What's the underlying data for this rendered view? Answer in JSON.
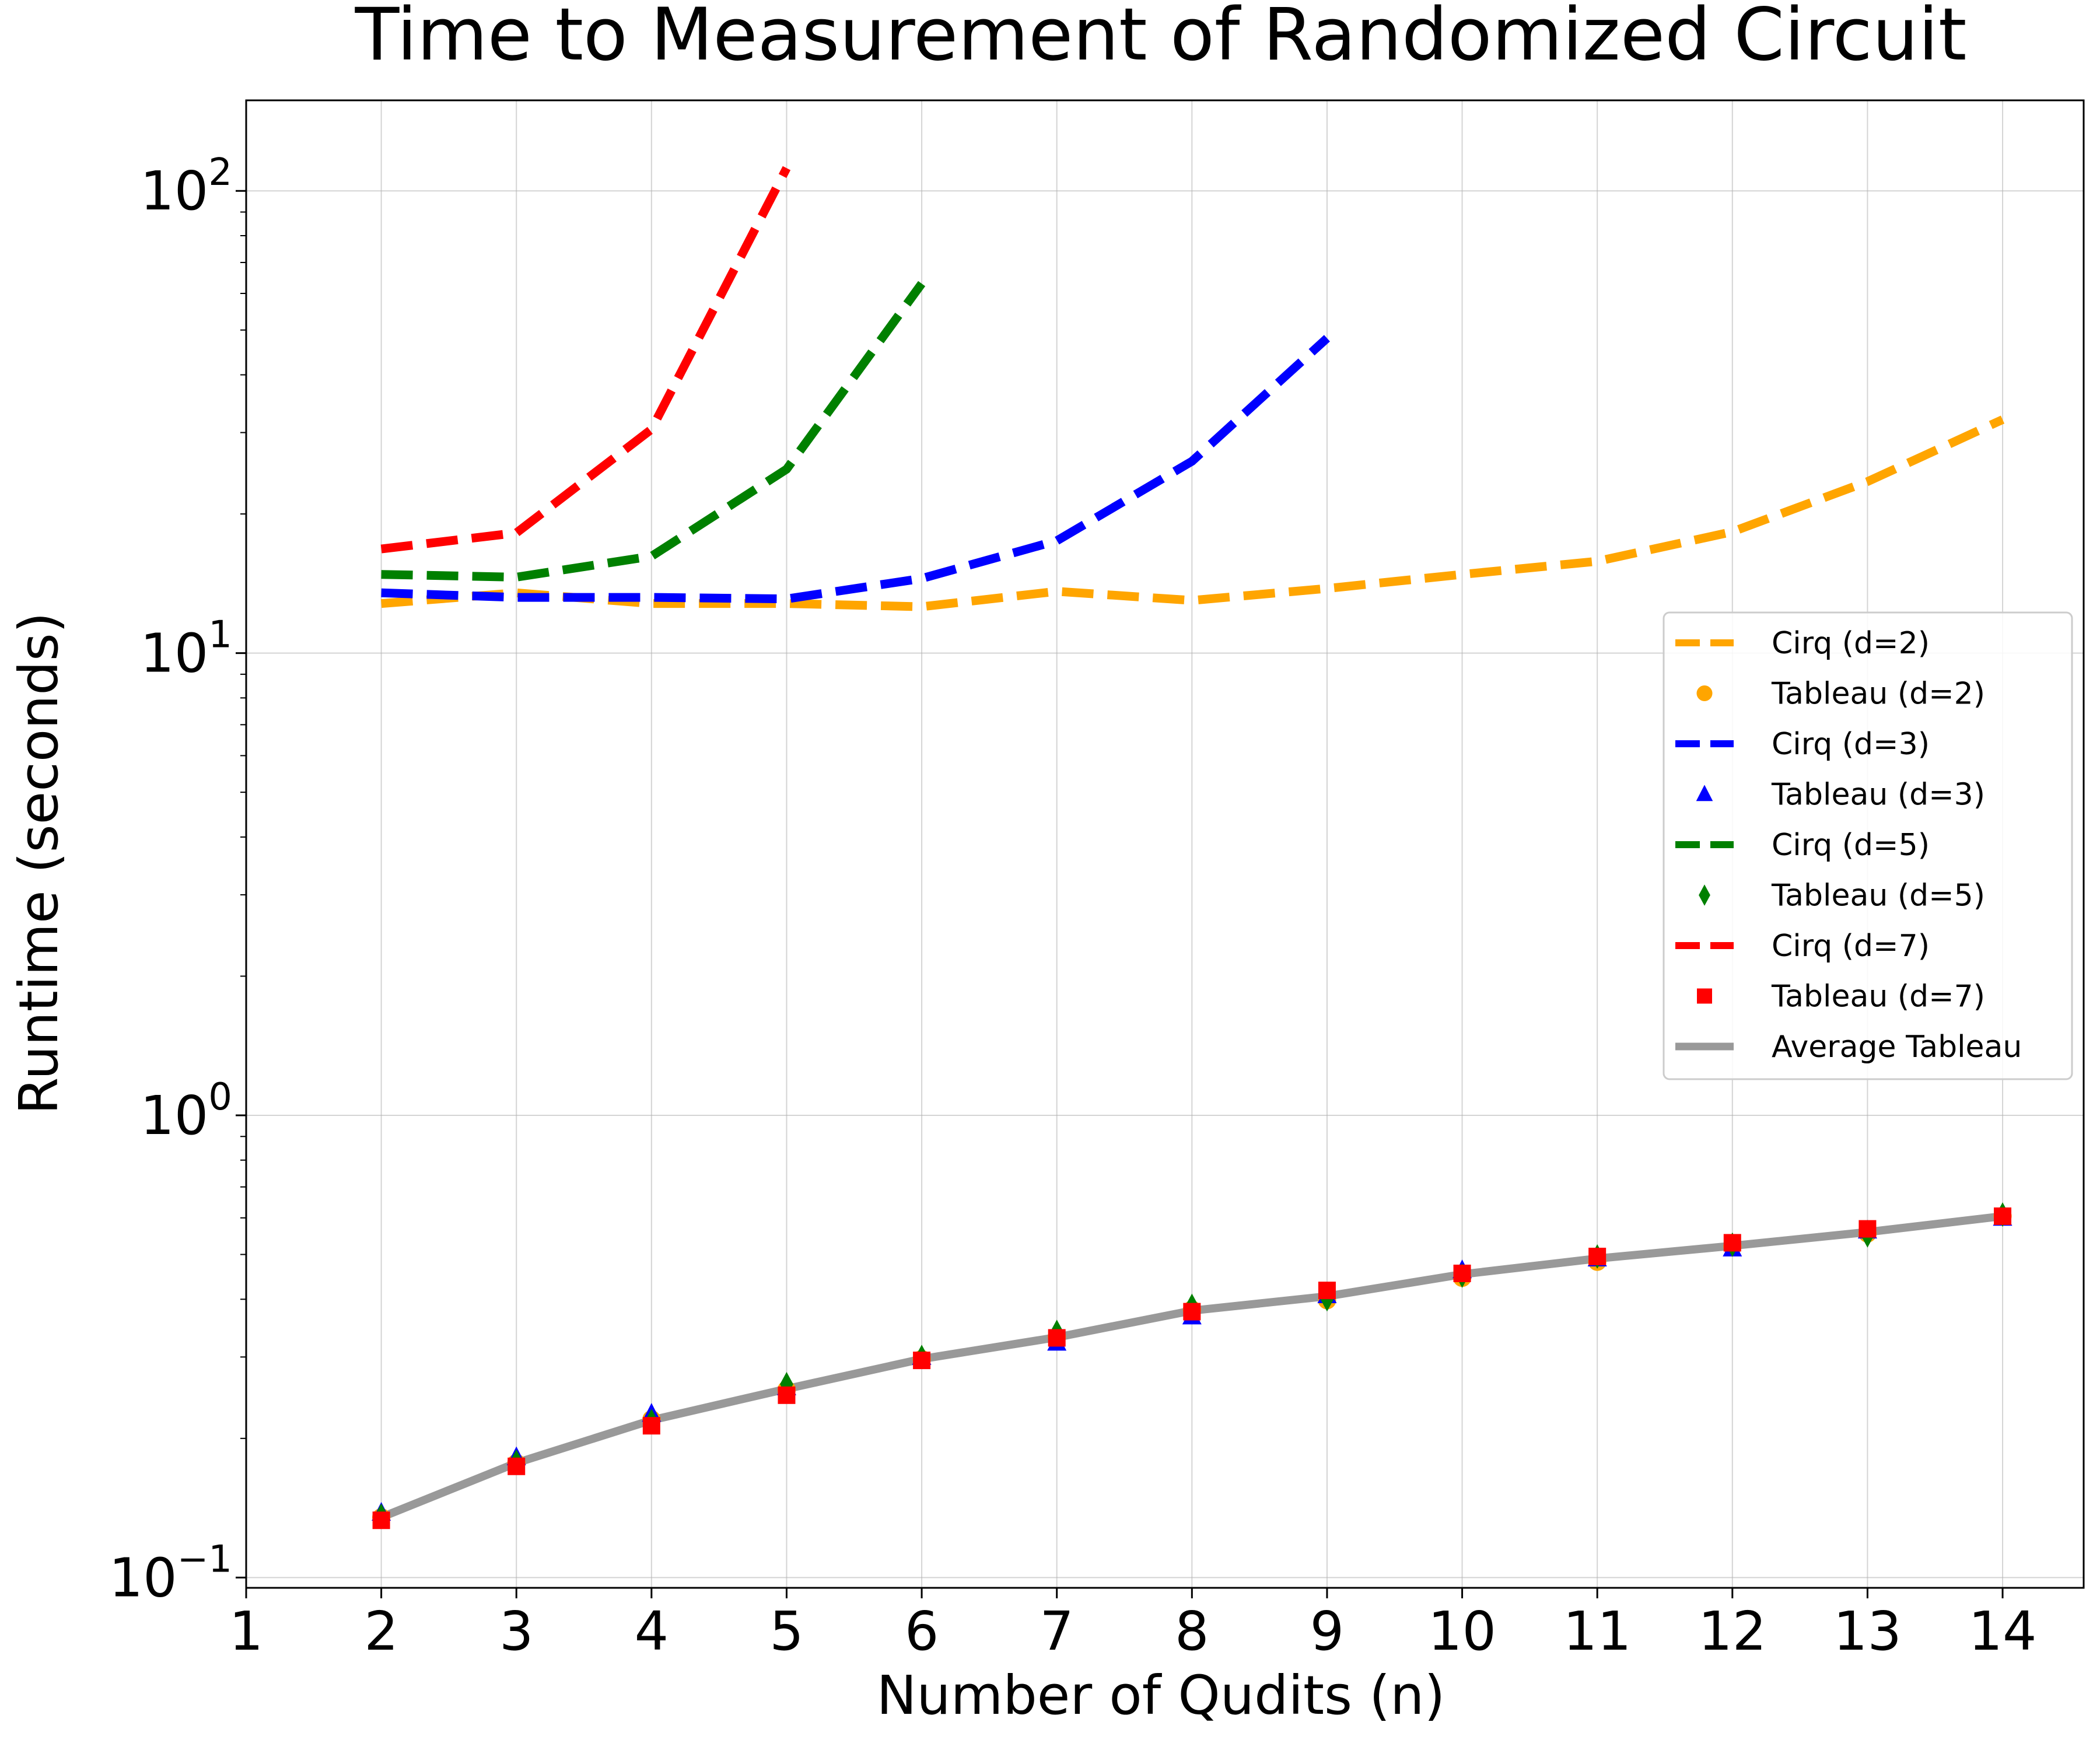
{
  "chart_data": {
    "type": "line",
    "title": "Time to Measurement of Randomized Circuit",
    "xlabel": "Number of Qudits (n)",
    "ylabel": "Runtime (seconds)",
    "xlim": [
      1,
      14.6
    ],
    "ylim": [
      0.095,
      157
    ],
    "yscale": "log",
    "grid": true,
    "legend_position": "center-right",
    "x_ticks": [
      1,
      2,
      3,
      4,
      5,
      6,
      7,
      8,
      9,
      10,
      11,
      12,
      13,
      14
    ],
    "y_ticks": [
      {
        "value": 0.1,
        "base": "10",
        "exp": "−1"
      },
      {
        "value": 1,
        "base": "10",
        "exp": "0"
      },
      {
        "value": 10,
        "base": "10",
        "exp": "1"
      },
      {
        "value": 100,
        "base": "10",
        "exp": "2"
      }
    ],
    "series": [
      {
        "name": "Cirq (d=2)",
        "kind": "line",
        "style": "dashed",
        "color": "#FFA500",
        "x": [
          2,
          3,
          4,
          5,
          6,
          7,
          8,
          9,
          10,
          11,
          12,
          13,
          14
        ],
        "y": [
          12.8,
          13.5,
          12.8,
          12.8,
          12.6,
          13.6,
          13.0,
          13.8,
          14.8,
          15.8,
          18.3,
          23.5,
          32.0
        ]
      },
      {
        "name": "Tableau (d=2)",
        "kind": "marker",
        "marker": "circle",
        "color": "#FFA500",
        "x": [
          2,
          3,
          4,
          5,
          6,
          7,
          8,
          9,
          10,
          11,
          12,
          13,
          14
        ],
        "y": [
          0.135,
          0.177,
          0.22,
          0.255,
          0.297,
          0.332,
          0.38,
          0.398,
          0.445,
          0.482,
          0.52,
          0.555,
          0.605
        ]
      },
      {
        "name": "Cirq (d=3)",
        "kind": "line",
        "style": "dashed",
        "color": "#0000FF",
        "x": [
          2,
          3,
          4,
          5,
          6,
          7,
          8,
          9
        ],
        "y": [
          13.5,
          13.2,
          13.2,
          13.1,
          14.5,
          17.5,
          26.0,
          48.0
        ]
      },
      {
        "name": "Tableau (d=3)",
        "kind": "marker",
        "marker": "triangle",
        "color": "#0000FF",
        "x": [
          2,
          3,
          4,
          5,
          6,
          7,
          8,
          9,
          10,
          11,
          12,
          13,
          14
        ],
        "y": [
          0.138,
          0.182,
          0.226,
          0.258,
          0.3,
          0.322,
          0.367,
          0.408,
          0.462,
          0.49,
          0.515,
          0.563,
          0.6
        ]
      },
      {
        "name": "Cirq (d=5)",
        "kind": "line",
        "style": "dashed",
        "color": "#008000",
        "x": [
          2,
          3,
          4,
          5,
          6
        ],
        "y": [
          14.8,
          14.6,
          16.2,
          25.0,
          63.0
        ]
      },
      {
        "name": "Tableau (d=5)",
        "kind": "marker",
        "marker": "diamond",
        "color": "#008000",
        "x": [
          2,
          3,
          4,
          5,
          6,
          7,
          8,
          9,
          10,
          11,
          12,
          13,
          14
        ],
        "y": [
          0.136,
          0.178,
          0.218,
          0.262,
          0.3,
          0.34,
          0.387,
          0.4,
          0.45,
          0.495,
          0.525,
          0.55,
          0.61
        ]
      },
      {
        "name": "Cirq (d=7)",
        "kind": "line",
        "style": "dashed",
        "color": "#FF0000",
        "x": [
          2,
          3,
          4,
          5
        ],
        "y": [
          16.8,
          18.2,
          30.5,
          112.0
        ]
      },
      {
        "name": "Tableau (d=7)",
        "kind": "marker",
        "marker": "square",
        "color": "#FF0000",
        "x": [
          2,
          3,
          4,
          5,
          6,
          7,
          8,
          9,
          10,
          11,
          12,
          13,
          14
        ],
        "y": [
          0.133,
          0.174,
          0.213,
          0.248,
          0.295,
          0.33,
          0.376,
          0.418,
          0.455,
          0.495,
          0.53,
          0.568,
          0.605
        ]
      },
      {
        "name": "Average Tableau",
        "kind": "line",
        "style": "solid",
        "color": "#999999",
        "x": [
          2,
          3,
          4,
          5,
          6,
          7,
          8,
          9,
          10,
          11,
          12,
          13,
          14
        ],
        "y": [
          0.135,
          0.177,
          0.219,
          0.256,
          0.297,
          0.331,
          0.378,
          0.406,
          0.453,
          0.49,
          0.522,
          0.559,
          0.605
        ]
      }
    ]
  }
}
